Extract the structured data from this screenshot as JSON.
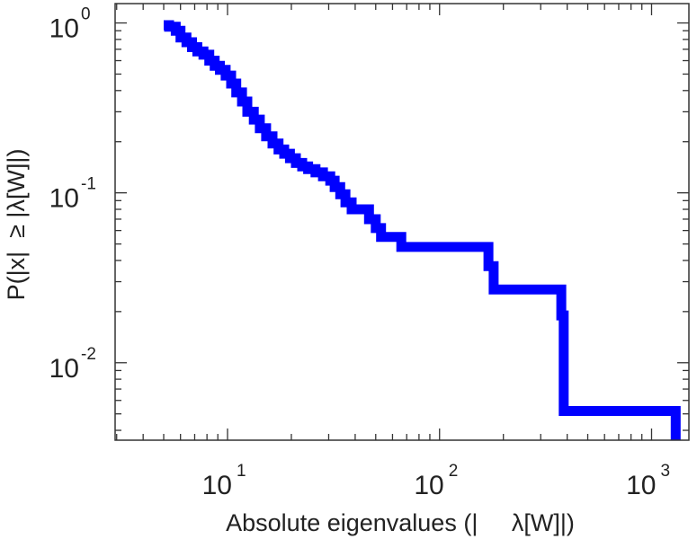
{
  "chart_data": {
    "type": "line",
    "subtype": "step (complementary cumulative distribution)",
    "title": "",
    "xlabel": "Absolute eigenvalues (|     λ[W]|)",
    "ylabel": "P(|x|  ≥ |λ[W]|)",
    "xscale": "log",
    "yscale": "log",
    "xlim": [
      2.95,
      1500
    ],
    "ylim": [
      0.0035,
      1.3
    ],
    "x_ticks": [
      {
        "base": "10",
        "exp": "1",
        "value": 10
      },
      {
        "base": "10",
        "exp": "2",
        "value": 100
      },
      {
        "base": "10",
        "exp": "3",
        "value": 1000
      }
    ],
    "y_ticks": [
      {
        "base": "10",
        "exp": "0",
        "value": 1
      },
      {
        "base": "10",
        "exp": "-1",
        "value": 0.1
      },
      {
        "base": "10",
        "exp": "-2",
        "value": 0.01
      }
    ],
    "grid": false,
    "legend": "none",
    "series": [
      {
        "color": "#0000ff",
        "x": [
          5.0,
          5.3,
          5.7,
          6.0,
          6.4,
          6.8,
          7.2,
          7.7,
          8.2,
          8.7,
          9.2,
          9.8,
          10.4,
          11.0,
          11.7,
          12.4,
          13.3,
          14.2,
          15.2,
          16.3,
          17.4,
          18.5,
          19.7,
          21.0,
          22.5,
          24.0,
          26.0,
          28.2,
          30.5,
          32.0,
          34.0,
          36.0,
          38.5,
          42.0,
          46.5,
          50.0,
          53.0,
          66.0,
          160.0,
          170.0,
          180.0,
          360.0,
          375.0,
          385.0,
          1300.0,
          1300.0
        ],
        "y": [
          0.97,
          0.95,
          0.9,
          0.82,
          0.77,
          0.72,
          0.68,
          0.65,
          0.6,
          0.56,
          0.53,
          0.49,
          0.44,
          0.39,
          0.345,
          0.3,
          0.27,
          0.24,
          0.215,
          0.195,
          0.18,
          0.17,
          0.16,
          0.15,
          0.143,
          0.138,
          0.132,
          0.125,
          0.118,
          0.108,
          0.098,
          0.088,
          0.08,
          0.08,
          0.07,
          0.062,
          0.055,
          0.048,
          0.048,
          0.037,
          0.027,
          0.027,
          0.019,
          0.0052,
          0.0052,
          0.0035
        ]
      }
    ]
  }
}
